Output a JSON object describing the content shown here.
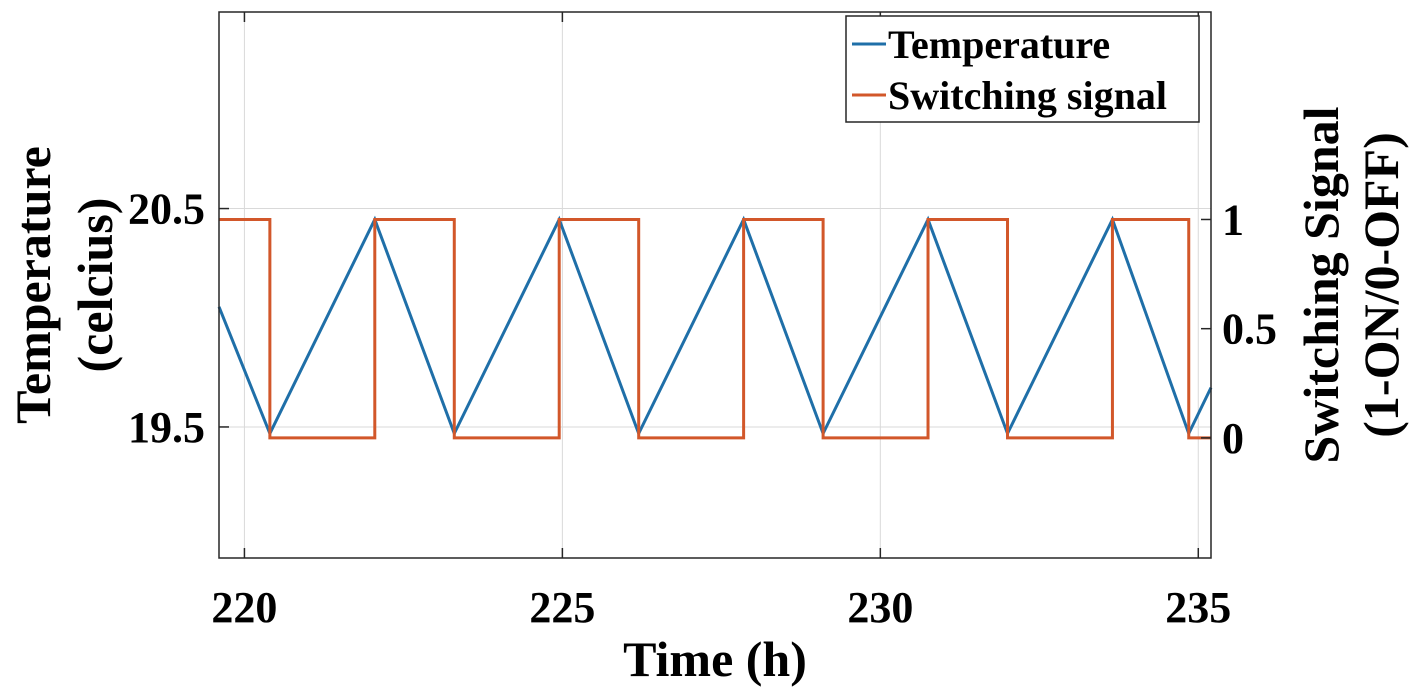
{
  "chart_data": {
    "type": "line",
    "title": "",
    "xlabel": "Time (h)",
    "ylabel_left": [
      "Temperature",
      "(celcius)"
    ],
    "ylabel_right": [
      "Switching Signal",
      "(1-ON/0-OFF)"
    ],
    "xlim": [
      219.6,
      235.2
    ],
    "ylim_left": [
      18.9,
      21.4
    ],
    "ylim_right": [
      -0.55,
      1.95
    ],
    "x_ticks": [
      220,
      225,
      230,
      235
    ],
    "x_tick_labels": [
      "220",
      "225",
      "230",
      "235"
    ],
    "y_left_ticks": [
      19.5,
      20.5
    ],
    "y_left_tick_labels": [
      "19.5",
      "20.5"
    ],
    "y_right_ticks": [
      0,
      0.5,
      1
    ],
    "y_right_tick_labels": [
      "0",
      "0.5",
      "1"
    ],
    "grid": true,
    "legend": {
      "placement": "top-right",
      "entries": [
        "Temperature",
        "Switching signal"
      ]
    },
    "series": [
      {
        "name": "Temperature",
        "axis": "left",
        "color": "#1f6fa8",
        "x": [
          219.6,
          220.4,
          222.05,
          223.3,
          224.95,
          226.2,
          227.85,
          229.1,
          230.75,
          232.0,
          233.65,
          234.85,
          235.2
        ],
        "y": [
          20.05,
          19.47,
          20.45,
          19.47,
          20.45,
          19.47,
          20.45,
          19.47,
          20.45,
          19.47,
          20.45,
          19.47,
          19.68
        ]
      },
      {
        "name": "Switching signal",
        "axis": "right",
        "color": "#d2572a",
        "step": true,
        "x": [
          219.6,
          220.4,
          222.05,
          223.3,
          224.95,
          226.2,
          227.85,
          229.1,
          230.75,
          232.0,
          233.65,
          234.85,
          235.2
        ],
        "y": [
          1,
          0,
          1,
          0,
          1,
          0,
          1,
          0,
          1,
          0,
          1,
          0,
          0
        ]
      }
    ]
  }
}
